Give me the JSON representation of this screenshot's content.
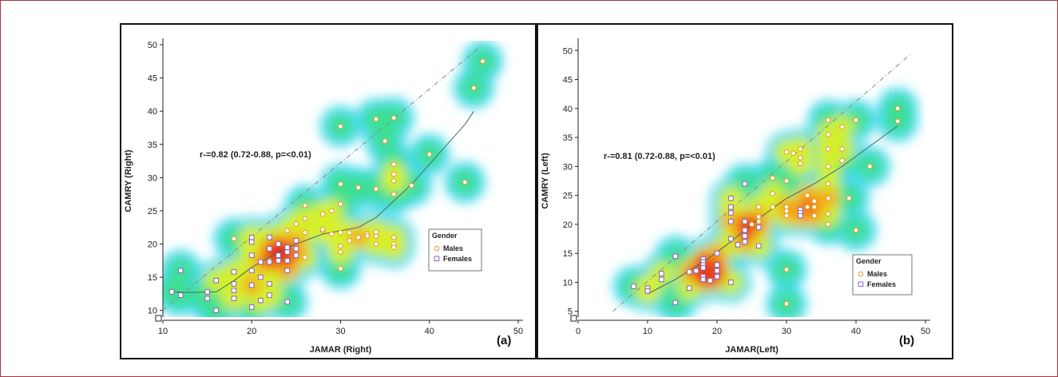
{
  "figure": {
    "colors": {
      "border": "#a3343f",
      "males": "#e39b2a",
      "females": "#8a63c0",
      "grid_dash": "#888888"
    }
  },
  "chart_data": [
    {
      "type": "scatter",
      "panel_label": "(a)",
      "xlabel": "JAMAR (Right)",
      "ylabel": "CAMRY (Right)",
      "xlim": [
        10,
        50
      ],
      "ylim": [
        9,
        50
      ],
      "x_ticks": [
        10,
        20,
        30,
        40,
        50
      ],
      "y_ticks": [
        10,
        15,
        20,
        25,
        30,
        35,
        40,
        45,
        50
      ],
      "annotation": "r-=0.82 (0.72-0.88, p=<0.01)",
      "legend": {
        "title": "Gender",
        "entries": [
          "Males",
          "Females"
        ],
        "placement": "center-right"
      },
      "identity_line": [
        [
          10,
          10
        ],
        [
          46,
          50
        ]
      ],
      "smooth_line": [
        [
          11,
          12.8
        ],
        [
          13,
          12.7
        ],
        [
          16,
          12.8
        ],
        [
          18,
          14.5
        ],
        [
          20,
          16.5
        ],
        [
          22,
          18
        ],
        [
          24,
          19.5
        ],
        [
          26,
          20.5
        ],
        [
          28,
          21.5
        ],
        [
          30,
          22
        ],
        [
          32,
          22.5
        ],
        [
          34,
          24
        ],
        [
          36,
          26.5
        ],
        [
          38,
          29
        ],
        [
          40,
          32
        ],
        [
          42,
          35
        ],
        [
          44,
          38
        ],
        [
          45,
          40
        ]
      ],
      "series": [
        {
          "name": "Males",
          "marker": "circle",
          "points": [
            [
              46,
              47.5
            ],
            [
              45,
              43.5
            ],
            [
              44,
              29.3
            ],
            [
              40,
              33.5
            ],
            [
              36,
              39
            ],
            [
              34,
              38.8
            ],
            [
              35,
              35.5
            ],
            [
              30,
              37.7
            ],
            [
              36,
              32
            ],
            [
              36,
              30.5
            ],
            [
              36,
              29.5
            ],
            [
              38,
              28.8
            ],
            [
              36,
              27.5
            ],
            [
              34,
              28.3
            ],
            [
              32,
              28.5
            ],
            [
              30,
              29
            ],
            [
              30,
              26
            ],
            [
              29,
              25
            ],
            [
              28,
              24.5
            ],
            [
              26,
              25.8
            ],
            [
              26,
              23.8
            ],
            [
              25,
              23
            ],
            [
              24,
              22
            ],
            [
              28,
              22
            ],
            [
              29,
              21.5
            ],
            [
              30,
              21.7
            ],
            [
              31,
              21.7
            ],
            [
              32,
              21
            ],
            [
              33,
              21.5
            ],
            [
              33,
              21.2
            ],
            [
              31,
              20.5
            ],
            [
              30,
              19.7
            ],
            [
              30,
              18.8
            ],
            [
              30,
              16.3
            ],
            [
              28,
              22.2
            ],
            [
              26,
              21.7
            ],
            [
              26,
              18
            ],
            [
              22,
              17.5
            ],
            [
              18,
              20.8
            ],
            [
              36,
              21
            ],
            [
              36,
              20
            ],
            [
              36,
              19.5
            ],
            [
              34,
              20
            ],
            [
              34,
              21.2
            ],
            [
              34,
              21.8
            ]
          ]
        },
        {
          "name": "Females",
          "marker": "square",
          "points": [
            [
              11,
              12.8
            ],
            [
              12,
              12.3
            ],
            [
              12,
              16
            ],
            [
              15,
              12.8
            ],
            [
              15,
              11.8
            ],
            [
              16,
              10
            ],
            [
              16,
              14.5
            ],
            [
              18,
              15.8
            ],
            [
              18,
              14
            ],
            [
              18,
              13
            ],
            [
              18,
              11.8
            ],
            [
              20,
              20.3
            ],
            [
              20,
              18.3
            ],
            [
              20,
              16
            ],
            [
              20,
              13.8
            ],
            [
              20,
              10.5
            ],
            [
              21,
              17.3
            ],
            [
              21,
              15
            ],
            [
              21,
              11.5
            ],
            [
              22,
              21
            ],
            [
              22,
              19.3
            ],
            [
              22,
              17.3
            ],
            [
              22,
              14
            ],
            [
              22,
              12.3
            ],
            [
              23,
              18.3
            ],
            [
              23,
              17.5
            ],
            [
              24,
              19.5
            ],
            [
              24,
              18.8
            ],
            [
              24,
              17.5
            ],
            [
              24,
              16
            ],
            [
              24,
              11.3
            ],
            [
              25,
              20.5
            ],
            [
              25,
              19.3
            ],
            [
              25,
              18.3
            ],
            [
              20,
              21
            ],
            [
              23,
              20
            ]
          ]
        }
      ]
    },
    {
      "type": "scatter",
      "panel_label": "(b)",
      "xlabel": "JAMAR(Left)",
      "ylabel": "CAMRY (Left)",
      "xlim": [
        0,
        50
      ],
      "ylim": [
        4,
        51
      ],
      "x_ticks": [
        0,
        10,
        20,
        30,
        40,
        50
      ],
      "y_ticks": [
        5,
        10,
        15,
        20,
        25,
        30,
        35,
        40,
        45,
        50
      ],
      "annotation": "r-=0.81 (0.72-0.88, p=<0.01)",
      "legend": {
        "title": "Gender",
        "entries": [
          "Males",
          "Females"
        ],
        "placement": "bottom-right"
      },
      "identity_line": [
        [
          5,
          5
        ],
        [
          48,
          49.5
        ]
      ],
      "smooth_line": [
        [
          10,
          8
        ],
        [
          14,
          10.5
        ],
        [
          18,
          13.5
        ],
        [
          22,
          17
        ],
        [
          26,
          21
        ],
        [
          30,
          24.5
        ],
        [
          34,
          27
        ],
        [
          38,
          30
        ],
        [
          42,
          33.5
        ],
        [
          46,
          37
        ]
      ],
      "series": [
        {
          "name": "Males",
          "marker": "circle",
          "points": [
            [
              46,
              40
            ],
            [
              46,
              37.8
            ],
            [
              42,
              30
            ],
            [
              40,
              38
            ],
            [
              40,
              19
            ],
            [
              39,
              24.5
            ],
            [
              38,
              36.8
            ],
            [
              38,
              33
            ],
            [
              38,
              31
            ],
            [
              36,
              38
            ],
            [
              36,
              35.5
            ],
            [
              36,
              33
            ],
            [
              36,
              30
            ],
            [
              36,
              27
            ],
            [
              36,
              24.5
            ],
            [
              36,
              21.8
            ],
            [
              36,
              20
            ],
            [
              33,
              25
            ],
            [
              33,
              23
            ],
            [
              32,
              33
            ],
            [
              32,
              31.5
            ],
            [
              32,
              30.5
            ],
            [
              31,
              32.3
            ],
            [
              30,
              32.5
            ],
            [
              30,
              27.5
            ],
            [
              30,
              23
            ],
            [
              30,
              22.3
            ],
            [
              30,
              21.5
            ],
            [
              30,
              12.2
            ],
            [
              30,
              6.3
            ],
            [
              28,
              28
            ],
            [
              28,
              25.3
            ],
            [
              28,
              23
            ],
            [
              26,
              23
            ],
            [
              26,
              21.3
            ],
            [
              26,
              20.5
            ],
            [
              25,
              20
            ],
            [
              34,
              23
            ],
            [
              34,
              21.5
            ],
            [
              34,
              24
            ]
          ]
        },
        {
          "name": "Females",
          "marker": "square",
          "points": [
            [
              8,
              9.3
            ],
            [
              10,
              9
            ],
            [
              10,
              8.5
            ],
            [
              12,
              11.5
            ],
            [
              12,
              10.5
            ],
            [
              14,
              14.5
            ],
            [
              14,
              6.5
            ],
            [
              16,
              11.8
            ],
            [
              16,
              9
            ],
            [
              17,
              12
            ],
            [
              18,
              14
            ],
            [
              18,
              13.5
            ],
            [
              18,
              13
            ],
            [
              18,
              12.5
            ],
            [
              18,
              11
            ],
            [
              18,
              10.5
            ],
            [
              19,
              10.3
            ],
            [
              20,
              15
            ],
            [
              20,
              13
            ],
            [
              20,
              12
            ],
            [
              20,
              11
            ],
            [
              22,
              24.5
            ],
            [
              22,
              23
            ],
            [
              22,
              22
            ],
            [
              22,
              20.5
            ],
            [
              22,
              17.5
            ],
            [
              22,
              10
            ],
            [
              23,
              16.5
            ],
            [
              24,
              27
            ],
            [
              24,
              20.5
            ],
            [
              24,
              19
            ],
            [
              24,
              18
            ],
            [
              24,
              17
            ],
            [
              26,
              19.5
            ],
            [
              26,
              16.3
            ],
            [
              32,
              22.5
            ],
            [
              32,
              22
            ],
            [
              32,
              21.5
            ]
          ]
        }
      ]
    }
  ]
}
